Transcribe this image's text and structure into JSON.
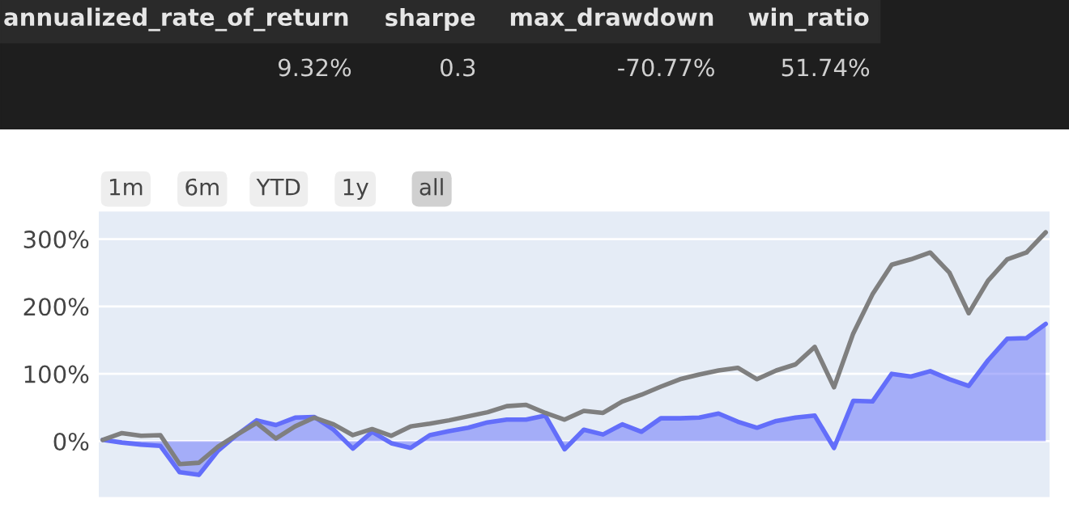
{
  "chart_data": {
    "type": "area",
    "annotations": [
      "annualized_rate_of_return",
      "sharpe",
      "max_drawdown",
      "win_ratio",
      "9.32%",
      "0.3",
      "-70.77%",
      "51.74%",
      "1m",
      "6m",
      "YTD",
      "1y",
      "all"
    ],
    "categories": [
      null,
      null,
      null,
      null,
      null,
      null,
      null,
      null,
      null,
      null,
      null,
      null,
      null,
      null,
      null,
      null,
      null,
      null,
      null,
      null,
      null,
      null,
      null,
      null,
      null,
      null,
      null,
      null,
      null,
      null,
      null,
      null,
      null,
      null,
      null,
      null,
      null,
      null,
      null,
      null,
      null,
      null,
      null,
      null,
      null,
      null,
      null,
      null,
      null,
      null
    ],
    "ylim": [
      -83,
      341
    ],
    "yticks": [
      {
        "value": 0,
        "label": "0%"
      },
      {
        "value": 100,
        "label": "100%"
      },
      {
        "value": 200,
        "label": "200%"
      },
      {
        "value": 300,
        "label": "300%"
      }
    ],
    "grid": "y",
    "tick_labels": "y",
    "series": [
      {
        "color": "#636efa",
        "values": [
          2,
          -2,
          -5,
          -7,
          -46,
          -50,
          -14,
          10,
          31,
          24,
          35,
          36,
          17,
          -11,
          14,
          -3,
          -10,
          9,
          15,
          20,
          28,
          32,
          32,
          38,
          -12,
          17,
          10,
          25,
          14,
          34,
          34,
          35,
          41,
          29,
          20,
          30,
          35,
          38,
          -10,
          60,
          59,
          100,
          96,
          104,
          92,
          82,
          120,
          152,
          153,
          174
        ]
      },
      {
        "type": "line",
        "color": "#7f7f7f",
        "values": [
          2,
          12,
          8,
          9,
          -34,
          -32,
          -8,
          10,
          27,
          4,
          22,
          35,
          25,
          9,
          18,
          8,
          22,
          26,
          31,
          37,
          43,
          52,
          54,
          42,
          32,
          45,
          42,
          59,
          69,
          81,
          92,
          99,
          105,
          109,
          92,
          105,
          114,
          140,
          80,
          160,
          218,
          262,
          270,
          280,
          250,
          190,
          238,
          270,
          280,
          310
        ]
      }
    ]
  }
}
